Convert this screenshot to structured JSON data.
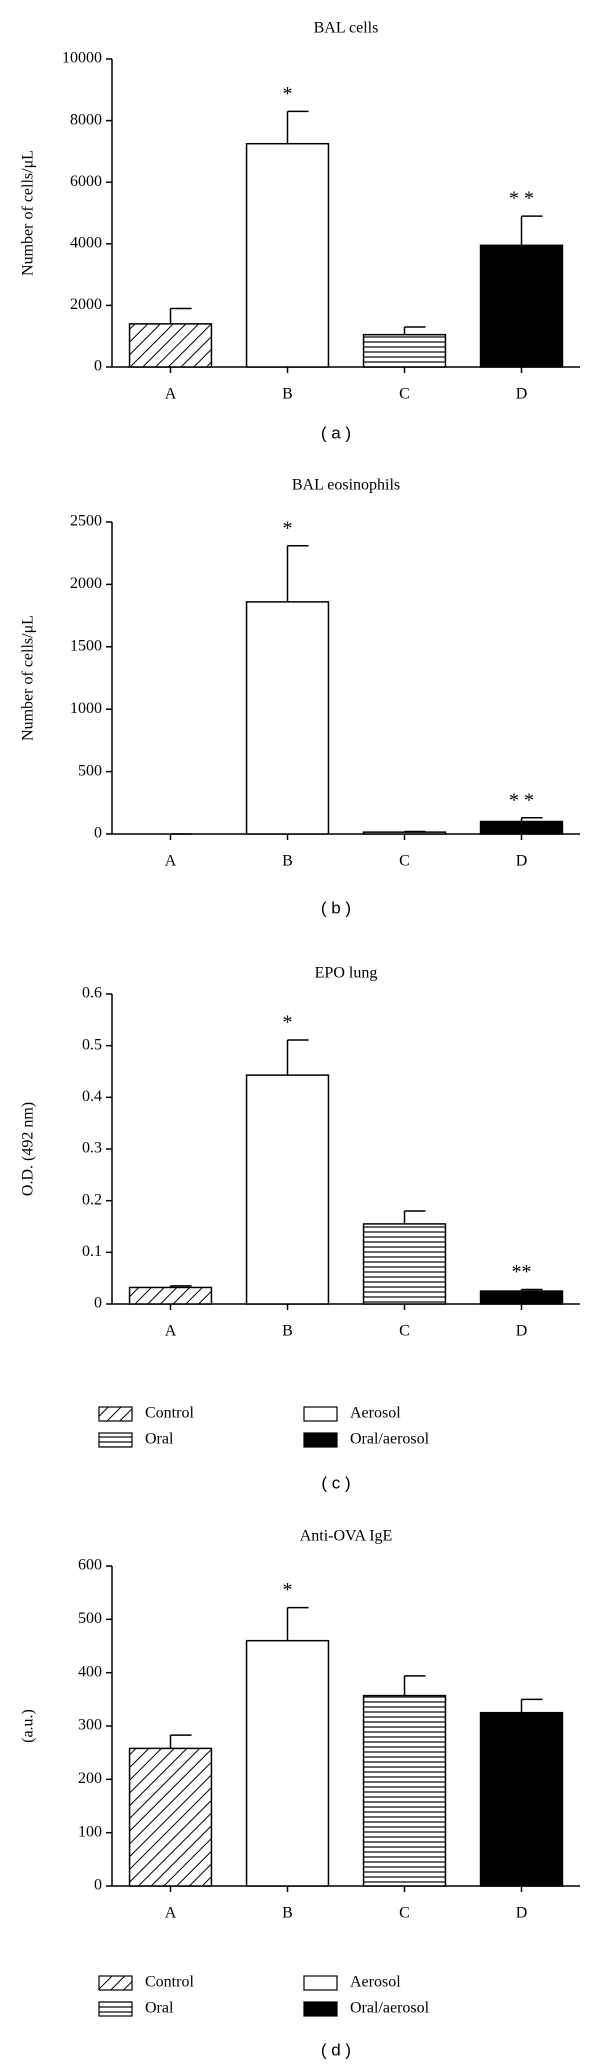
{
  "chart_data": [
    {
      "type": "bar",
      "title": "BAL cells",
      "ylabel": "Number of cells/μL",
      "panel": "( a )",
      "categories": [
        "A",
        "B",
        "C",
        "D"
      ],
      "values": [
        1400,
        7250,
        1050,
        3950
      ],
      "errors": [
        500,
        1050,
        250,
        950
      ],
      "annotations": [
        null,
        "*",
        null,
        "* *"
      ],
      "patterns": [
        "diagonal",
        "white",
        "horizontal",
        "black"
      ],
      "ylim": [
        0,
        10000
      ],
      "yticks": [
        0,
        2000,
        4000,
        6000,
        8000,
        10000
      ]
    },
    {
      "type": "bar",
      "title": "BAL eosinophils",
      "ylabel": "Number of cells/μL",
      "panel": "( b )",
      "categories": [
        "A",
        "B",
        "C",
        "D"
      ],
      "values": [
        0,
        1860,
        15,
        100
      ],
      "errors": [
        0,
        450,
        5,
        30
      ],
      "annotations": [
        null,
        "*",
        null,
        "* *"
      ],
      "patterns": [
        "diagonal",
        "white",
        "horizontal",
        "black"
      ],
      "ylim": [
        0,
        2500
      ],
      "yticks": [
        0,
        500,
        1000,
        1500,
        2000,
        2500
      ]
    },
    {
      "type": "bar",
      "title": "EPO lung",
      "ylabel": "O.D. (492 nm)",
      "panel": "( c )",
      "categories": [
        "A",
        "B",
        "C",
        "D"
      ],
      "values": [
        0.032,
        0.443,
        0.155,
        0.025
      ],
      "errors": [
        0.003,
        0.068,
        0.025,
        0.003
      ],
      "annotations": [
        null,
        "*",
        null,
        "**"
      ],
      "patterns": [
        "diagonal",
        "white",
        "horizontal",
        "black"
      ],
      "ylim": [
        0,
        0.6
      ],
      "yticks": [
        0,
        0.1,
        0.2,
        0.3,
        0.4,
        0.5,
        0.6
      ],
      "legend": [
        {
          "label": "Control",
          "pattern": "diagonal"
        },
        {
          "label": "Aerosol",
          "pattern": "white"
        },
        {
          "label": "Oral",
          "pattern": "horizontal"
        },
        {
          "label": "Oral/aerosol",
          "pattern": "black"
        }
      ]
    },
    {
      "type": "bar",
      "title": "Anti-OVA IgE",
      "ylabel": "(a.u.)",
      "panel": "( d )",
      "categories": [
        "A",
        "B",
        "C",
        "D"
      ],
      "values": [
        258,
        460,
        357,
        325
      ],
      "errors": [
        25,
        62,
        37,
        25
      ],
      "annotations": [
        null,
        "*",
        null,
        null
      ],
      "patterns": [
        "diagonal",
        "white",
        "horizontal",
        "black"
      ],
      "ylim": [
        0,
        600
      ],
      "yticks": [
        0,
        100,
        200,
        300,
        400,
        500,
        600
      ],
      "legend": [
        {
          "label": "Control",
          "pattern": "diagonal"
        },
        {
          "label": "Aerosol",
          "pattern": "white"
        },
        {
          "label": "Oral",
          "pattern": "horizontal"
        },
        {
          "label": "Oral/aerosol",
          "pattern": "black"
        }
      ]
    }
  ]
}
